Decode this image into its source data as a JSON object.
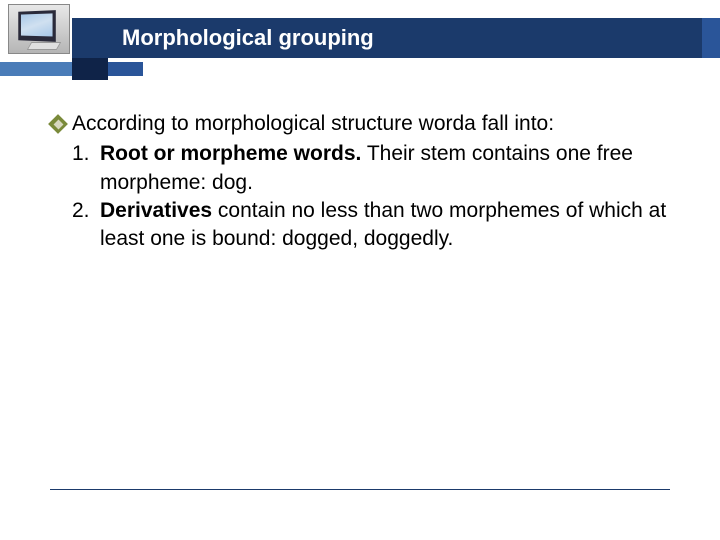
{
  "header": {
    "title": "Morphological grouping",
    "title_color": "#ffffff",
    "title_fontsize": 22,
    "bar_color": "#1b3a6b",
    "accent_color": "#4a7cb8",
    "accent_color2": "#2a5599",
    "dark_square_color": "#0f2348"
  },
  "content": {
    "bullet_icon_color": "#7a8a3a",
    "intro": "According to morphological structure worda fall into:",
    "items": [
      {
        "num": "1.",
        "bold": "Root or morpheme words.",
        "rest": " Their stem contains one free morpheme: dog."
      },
      {
        "num": "2.",
        "bold": "Derivatives",
        "rest": " contain no less than two morphemes of which at least one is bound: dogged, doggedly."
      }
    ],
    "font_size": 21,
    "text_color": "#000000"
  },
  "footer": {
    "line_color": "#1b3a6b"
  }
}
